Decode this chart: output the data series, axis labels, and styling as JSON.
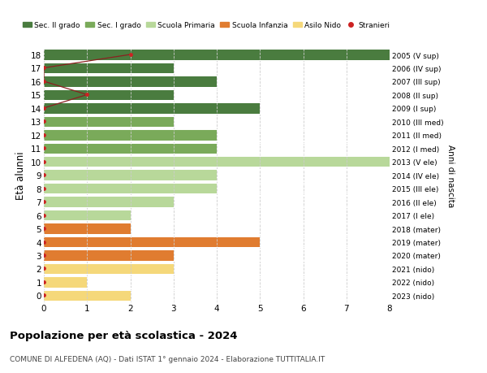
{
  "ages": [
    18,
    17,
    16,
    15,
    14,
    13,
    12,
    11,
    10,
    9,
    8,
    7,
    6,
    5,
    4,
    3,
    2,
    1,
    0
  ],
  "right_labels": [
    "2005 (V sup)",
    "2006 (IV sup)",
    "2007 (III sup)",
    "2008 (II sup)",
    "2009 (I sup)",
    "2010 (III med)",
    "2011 (II med)",
    "2012 (I med)",
    "2013 (V ele)",
    "2014 (IV ele)",
    "2015 (III ele)",
    "2016 (II ele)",
    "2017 (I ele)",
    "2018 (mater)",
    "2019 (mater)",
    "2020 (mater)",
    "2021 (nido)",
    "2022 (nido)",
    "2023 (nido)"
  ],
  "values": [
    8,
    3,
    4,
    3,
    5,
    3,
    4,
    4,
    8,
    4,
    4,
    3,
    2,
    2,
    5,
    3,
    3,
    1,
    2
  ],
  "bar_colors": [
    "#4a7c3f",
    "#4a7c3f",
    "#4a7c3f",
    "#4a7c3f",
    "#4a7c3f",
    "#7aaa5a",
    "#7aaa5a",
    "#7aaa5a",
    "#b8d89a",
    "#b8d89a",
    "#b8d89a",
    "#b8d89a",
    "#b8d89a",
    "#e07c30",
    "#e07c30",
    "#e07c30",
    "#f5d87a",
    "#f5d87a",
    "#f5d87a"
  ],
  "stranieri_dot_x": [
    2,
    0,
    0,
    1,
    0,
    0,
    0,
    0,
    0,
    0,
    0,
    0,
    0,
    0,
    0,
    0,
    0,
    0,
    0
  ],
  "stranieri_line_ages": [
    18,
    17,
    16,
    15,
    14
  ],
  "stranieri_line_x": [
    2,
    0,
    0,
    1,
    0
  ],
  "legend_labels": [
    "Sec. II grado",
    "Sec. I grado",
    "Scuola Primaria",
    "Scuola Infanzia",
    "Asilo Nido",
    "Stranieri"
  ],
  "legend_colors": [
    "#4a7c3f",
    "#7aaa5a",
    "#b8d89a",
    "#e07c30",
    "#f5d87a",
    "#cc2222"
  ],
  "ylabel": "Età alunni",
  "right_ylabel": "Anni di nascita",
  "title": "Popolazione per età scolastica - 2024",
  "subtitle": "COMUNE DI ALFEDENA (AQ) - Dati ISTAT 1° gennaio 2024 - Elaborazione TUTTITALIA.IT",
  "xlim": [
    0,
    8
  ],
  "ylim": [
    -0.5,
    18.5
  ],
  "xticks": [
    0,
    1,
    2,
    3,
    4,
    5,
    6,
    7,
    8
  ],
  "background_color": "#ffffff",
  "grid_color": "#cccccc",
  "bar_height": 0.82
}
